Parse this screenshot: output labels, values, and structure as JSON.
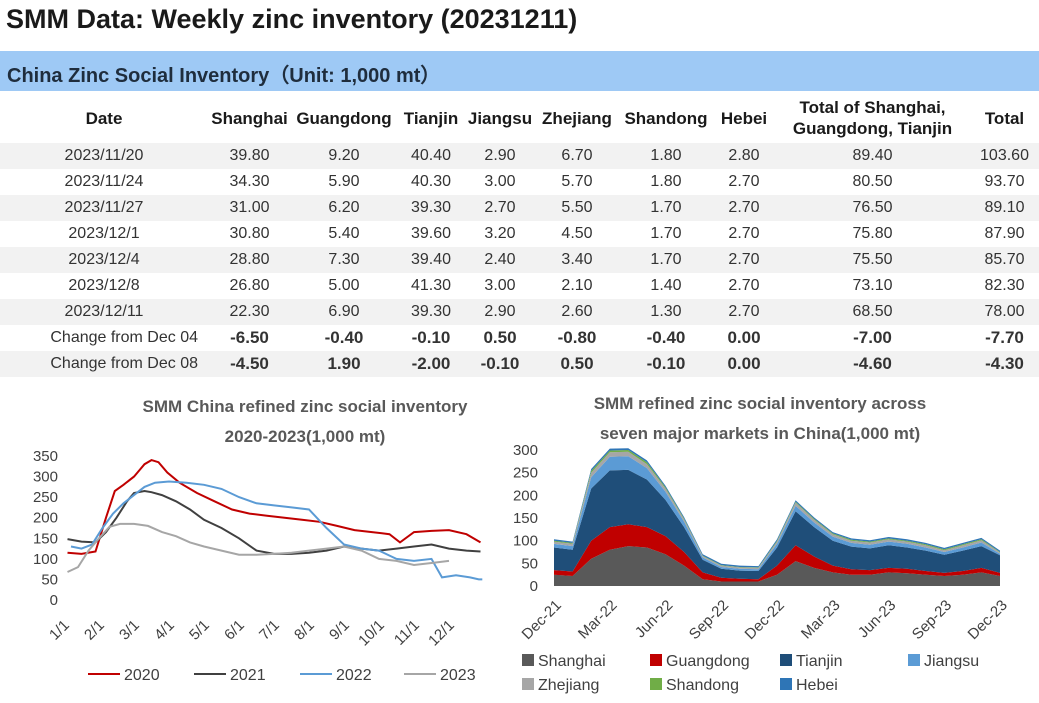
{
  "page_title": "SMM Data: Weekly zinc inventory (20231211)",
  "table": {
    "banner": "China Zinc Social Inventory（Unit: 1,000 mt）",
    "headers": [
      "Date",
      "Shanghai",
      "Guangdong",
      "Tianjin",
      "Jiangsu",
      "Zhejiang",
      "Shandong",
      "Hebei",
      "Total of Shanghai,\nGuangdong, Tianjin",
      "Total"
    ],
    "rows": [
      [
        "2023/11/20",
        "39.80",
        "9.20",
        "40.40",
        "2.90",
        "6.70",
        "1.80",
        "2.80",
        "89.40",
        "103.60"
      ],
      [
        "2023/11/24",
        "34.30",
        "5.90",
        "40.30",
        "3.00",
        "5.70",
        "1.80",
        "2.70",
        "80.50",
        "93.70"
      ],
      [
        "2023/11/27",
        "31.00",
        "6.20",
        "39.30",
        "2.70",
        "5.50",
        "1.70",
        "2.70",
        "76.50",
        "89.10"
      ],
      [
        "2023/12/1",
        "30.80",
        "5.40",
        "39.60",
        "3.20",
        "4.50",
        "1.70",
        "2.70",
        "75.80",
        "87.90"
      ],
      [
        "2023/12/4",
        "28.80",
        "7.30",
        "39.40",
        "2.40",
        "3.40",
        "1.70",
        "2.70",
        "75.50",
        "85.70"
      ],
      [
        "2023/12/8",
        "26.80",
        "5.00",
        "41.30",
        "3.00",
        "2.10",
        "1.40",
        "2.70",
        "73.10",
        "82.30"
      ],
      [
        "2023/12/11",
        "22.30",
        "6.90",
        "39.30",
        "2.90",
        "2.60",
        "1.30",
        "2.70",
        "68.50",
        "78.00"
      ]
    ],
    "change_rows": [
      [
        "Change from Dec 04",
        "-6.50",
        "-0.40",
        "-0.10",
        "0.50",
        "-0.80",
        "-0.40",
        "0.00",
        "-7.00",
        "-7.70"
      ],
      [
        "Change from Dec 08",
        "-4.50",
        "1.90",
        "-2.00",
        "-0.10",
        "0.50",
        "-0.10",
        "0.00",
        "-4.60",
        "-4.30"
      ]
    ],
    "colors": {
      "negative": "#00b050",
      "positive": "#e00000",
      "zero": "#404040",
      "banner": "#9ec9f5",
      "stripe": "#f2f2f2"
    }
  },
  "chart_data": [
    {
      "type": "line",
      "title": "SMM China refined zinc social inventory\n2020-2023(1,000 mt)",
      "x_ticks": [
        "1/1",
        "2/1",
        "3/1",
        "4/1",
        "5/1",
        "6/1",
        "7/1",
        "8/1",
        "9/1",
        "10/1",
        "11/1",
        "12/1"
      ],
      "y_ticks": [
        0,
        50,
        100,
        150,
        200,
        250,
        300,
        350
      ],
      "ylim": [
        0,
        350
      ],
      "legend_position": "bottom",
      "series": [
        {
          "name": "2020",
          "color": "#c00000",
          "x_month": [
            0.1,
            0.5,
            0.9,
            1.2,
            1.45,
            1.7,
            2.0,
            2.15,
            2.3,
            2.5,
            2.7,
            2.95,
            3.3,
            3.8,
            4.3,
            4.8,
            5.3,
            5.8,
            6.3,
            6.8,
            7.3,
            7.8,
            8.3,
            8.8,
            9.3,
            9.6,
            10.0,
            10.5,
            11.0,
            11.5,
            11.9
          ],
          "values": [
            115,
            112,
            118,
            200,
            265,
            280,
            300,
            315,
            330,
            340,
            335,
            310,
            285,
            260,
            240,
            220,
            210,
            205,
            200,
            195,
            190,
            180,
            170,
            165,
            160,
            140,
            165,
            168,
            170,
            160,
            140
          ]
        },
        {
          "name": "2021",
          "color": "#404040",
          "x_month": [
            0.1,
            0.5,
            0.9,
            1.2,
            1.5,
            1.8,
            2.0,
            2.3,
            2.5,
            2.8,
            3.2,
            3.6,
            4.0,
            4.5,
            5.0,
            5.5,
            6.0,
            6.5,
            7.0,
            7.5,
            8.0,
            8.5,
            9.0,
            9.5,
            10.0,
            10.5,
            11.0,
            11.5,
            11.9
          ],
          "values": [
            148,
            142,
            140,
            165,
            200,
            240,
            260,
            265,
            262,
            255,
            240,
            220,
            195,
            175,
            150,
            120,
            112,
            112,
            115,
            120,
            130,
            125,
            120,
            125,
            130,
            135,
            125,
            120,
            118
          ]
        },
        {
          "name": "2022",
          "color": "#5b9bd5",
          "x_month": [
            0.2,
            0.5,
            0.8,
            1.1,
            1.4,
            1.7,
            2.0,
            2.3,
            2.6,
            3.0,
            3.5,
            4.0,
            4.5,
            5.0,
            5.5,
            6.0,
            6.5,
            7.0,
            7.5,
            8.0,
            8.5,
            9.0,
            9.5,
            10.0,
            10.5,
            10.8,
            11.2,
            11.6,
            11.85,
            11.95
          ],
          "values": [
            130,
            125,
            135,
            175,
            210,
            235,
            255,
            275,
            285,
            288,
            285,
            280,
            270,
            250,
            235,
            230,
            225,
            220,
            175,
            135,
            125,
            120,
            100,
            95,
            100,
            55,
            60,
            55,
            50,
            50
          ]
        },
        {
          "name": "2023",
          "color": "#a6a6a6",
          "x_month": [
            0.1,
            0.4,
            0.7,
            1.0,
            1.3,
            1.6,
            2.0,
            2.4,
            2.8,
            3.2,
            3.6,
            4.0,
            4.5,
            5.0,
            5.5,
            6.0,
            6.5,
            7.0,
            7.5,
            8.0,
            8.5,
            9.0,
            9.5,
            10.0,
            10.5,
            11.0
          ],
          "values": [
            68,
            80,
            120,
            150,
            178,
            185,
            185,
            180,
            165,
            155,
            140,
            130,
            120,
            110,
            110,
            112,
            115,
            120,
            125,
            130,
            120,
            100,
            95,
            85,
            90,
            95
          ]
        }
      ]
    },
    {
      "type": "area",
      "stacked": true,
      "title": "SMM refined zinc social inventory across\nseven major markets in China(1,000 mt)",
      "x_ticks": [
        "Dec-21",
        "Mar-22",
        "Jun-22",
        "Sep-22",
        "Dec-22",
        "Mar-23",
        "Jun-23",
        "Sep-23",
        "Dec-23"
      ],
      "y_ticks": [
        0,
        50,
        100,
        150,
        200,
        250,
        300
      ],
      "ylim": [
        0,
        300
      ],
      "legend_position": "bottom",
      "x_month_index": [
        0,
        1,
        2,
        3,
        4,
        5,
        6,
        7,
        8,
        9,
        10,
        11,
        12,
        13,
        14,
        15,
        16,
        17,
        18,
        19,
        20,
        21,
        22,
        23,
        24
      ],
      "series": [
        {
          "name": "Shanghai",
          "color": "#595959",
          "values": [
            25,
            22,
            60,
            80,
            88,
            85,
            70,
            45,
            15,
            10,
            10,
            10,
            25,
            55,
            40,
            30,
            25,
            25,
            30,
            28,
            25,
            22,
            25,
            30,
            22
          ]
        },
        {
          "name": "Guangdong",
          "color": "#c00000",
          "values": [
            10,
            10,
            40,
            50,
            48,
            45,
            40,
            30,
            15,
            8,
            6,
            5,
            20,
            35,
            25,
            15,
            12,
            10,
            10,
            10,
            8,
            7,
            8,
            10,
            7
          ]
        },
        {
          "name": "Tianjin",
          "color": "#1f4e79",
          "values": [
            50,
            48,
            115,
            125,
            120,
            105,
            80,
            55,
            28,
            20,
            18,
            18,
            40,
            75,
            65,
            55,
            50,
            48,
            50,
            47,
            45,
            40,
            45,
            48,
            39
          ]
        },
        {
          "name": "Jiangsu",
          "color": "#5b9bd5",
          "values": [
            8,
            8,
            25,
            30,
            30,
            25,
            18,
            12,
            5,
            4,
            4,
            4,
            8,
            12,
            10,
            9,
            8,
            8,
            8,
            8,
            7,
            6,
            7,
            8,
            3
          ]
        },
        {
          "name": "Zhejiang",
          "color": "#a6a6a6",
          "values": [
            5,
            5,
            10,
            10,
            10,
            9,
            7,
            5,
            3,
            3,
            3,
            3,
            5,
            7,
            6,
            5,
            5,
            5,
            5,
            5,
            5,
            4,
            5,
            5,
            3
          ]
        },
        {
          "name": "Shandong",
          "color": "#70ad47",
          "values": [
            2,
            2,
            4,
            4,
            4,
            4,
            3,
            2,
            1,
            1,
            1,
            1,
            2,
            2,
            2,
            2,
            2,
            2,
            2,
            2,
            2,
            2,
            2,
            2,
            1
          ]
        },
        {
          "name": "Hebei",
          "color": "#2e75b6",
          "values": [
            3,
            3,
            4,
            4,
            4,
            4,
            3,
            3,
            3,
            3,
            3,
            3,
            3,
            3,
            3,
            3,
            3,
            3,
            3,
            3,
            3,
            3,
            3,
            3,
            3
          ]
        }
      ]
    }
  ]
}
